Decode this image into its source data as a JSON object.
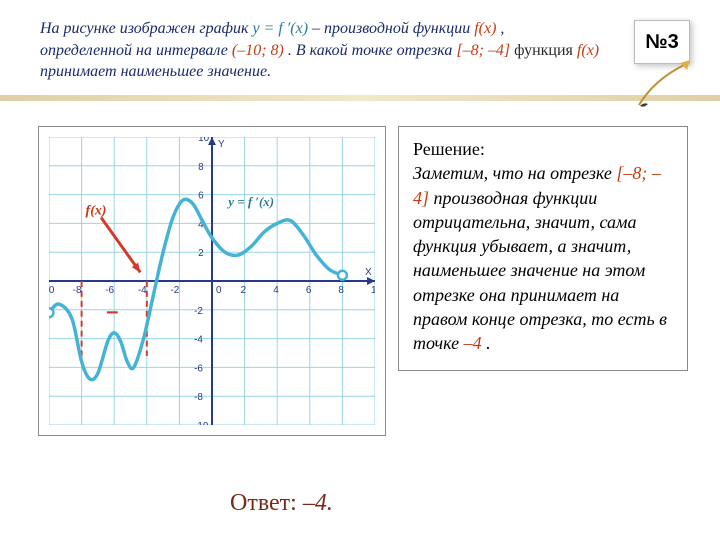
{
  "badge": {
    "label": "№3"
  },
  "problem": {
    "t1": "На рисунке изображен график ",
    "eq1": "у = f ′(x)",
    "t2": " – производной функции  ",
    "fx": "f(x)",
    "t3": ", определенной на интервале ",
    "intv": "(–10; 8)",
    "t4": ". В какой точке отрезка ",
    "seg": "[–8; –4]",
    "t5": " функция  ",
    "fx2": "f(x)",
    "t6": " принимает наименьшее значение."
  },
  "solution": {
    "head": "Решение:",
    "s1": "Заметим, что на отрезке ",
    "seg": "[–8; –4]",
    "s2": " производная функции отрицательна, значит, сама функция убывает, а значит, наименьшее значение на этом отрезке она принимает на правом конце отрезка, то есть в точке ",
    "pt": "–4",
    "s3": "."
  },
  "answer": {
    "label": "Ответ: ",
    "value": "–4."
  },
  "chart": {
    "grid_color": "#8fd0e4",
    "axis_color": "#273a8a",
    "curve_color": "#45b3d6",
    "dash_color": "#d33a2a",
    "minus_color": "#d33a2a",
    "fx_label": "f(x)",
    "fx_label_color": "#c23a12",
    "yfx_label": "у = f ′(x)",
    "yfx_label_color": "#2a7c96",
    "x_title": "X",
    "y_title": "Y",
    "x_range": [
      -10,
      10
    ],
    "y_range": [
      -10,
      10
    ],
    "tick_step": 2,
    "x_ticks": [
      -10,
      -8,
      -6,
      -4,
      -2,
      0,
      2,
      4,
      6,
      8,
      10
    ],
    "y_ticks": [
      -10,
      -8,
      -6,
      -4,
      -2,
      2,
      4,
      6,
      8,
      10
    ],
    "curve": [
      [
        -10,
        -2.2
      ],
      [
        -9.4,
        -1.6
      ],
      [
        -8.6,
        -2.6
      ],
      [
        -8,
        -5.6
      ],
      [
        -7.5,
        -6.8
      ],
      [
        -7,
        -6.4
      ],
      [
        -6.4,
        -4.2
      ],
      [
        -6,
        -3.6
      ],
      [
        -5.6,
        -4.2
      ],
      [
        -5.2,
        -5.6
      ],
      [
        -4.8,
        -6.0
      ],
      [
        -4.2,
        -4.0
      ],
      [
        -3.6,
        -1.0
      ],
      [
        -3,
        2.0
      ],
      [
        -2.4,
        4.4
      ],
      [
        -1.8,
        5.6
      ],
      [
        -1.2,
        5.4
      ],
      [
        -0.6,
        4.2
      ],
      [
        0,
        3.0
      ],
      [
        0.8,
        2.0
      ],
      [
        1.6,
        1.8
      ],
      [
        2.4,
        2.4
      ],
      [
        3.2,
        3.4
      ],
      [
        4,
        4.0
      ],
      [
        4.8,
        4.2
      ],
      [
        5.6,
        3.2
      ],
      [
        6.4,
        1.8
      ],
      [
        7.2,
        0.8
      ],
      [
        8,
        0.4
      ]
    ],
    "open_left": [
      -10,
      -2.2
    ],
    "open_right": [
      8,
      0.4
    ],
    "dashed": [
      [
        [
          -8,
          0
        ],
        [
          -8,
          -5.6
        ]
      ],
      [
        [
          -4,
          0
        ],
        [
          -4,
          -5.2
        ]
      ]
    ],
    "minus_at": [
      -6,
      -2.6
    ],
    "arrow_from": [
      -6.8,
      4.4
    ],
    "arrow_to": [
      -4.4,
      0.6
    ]
  }
}
